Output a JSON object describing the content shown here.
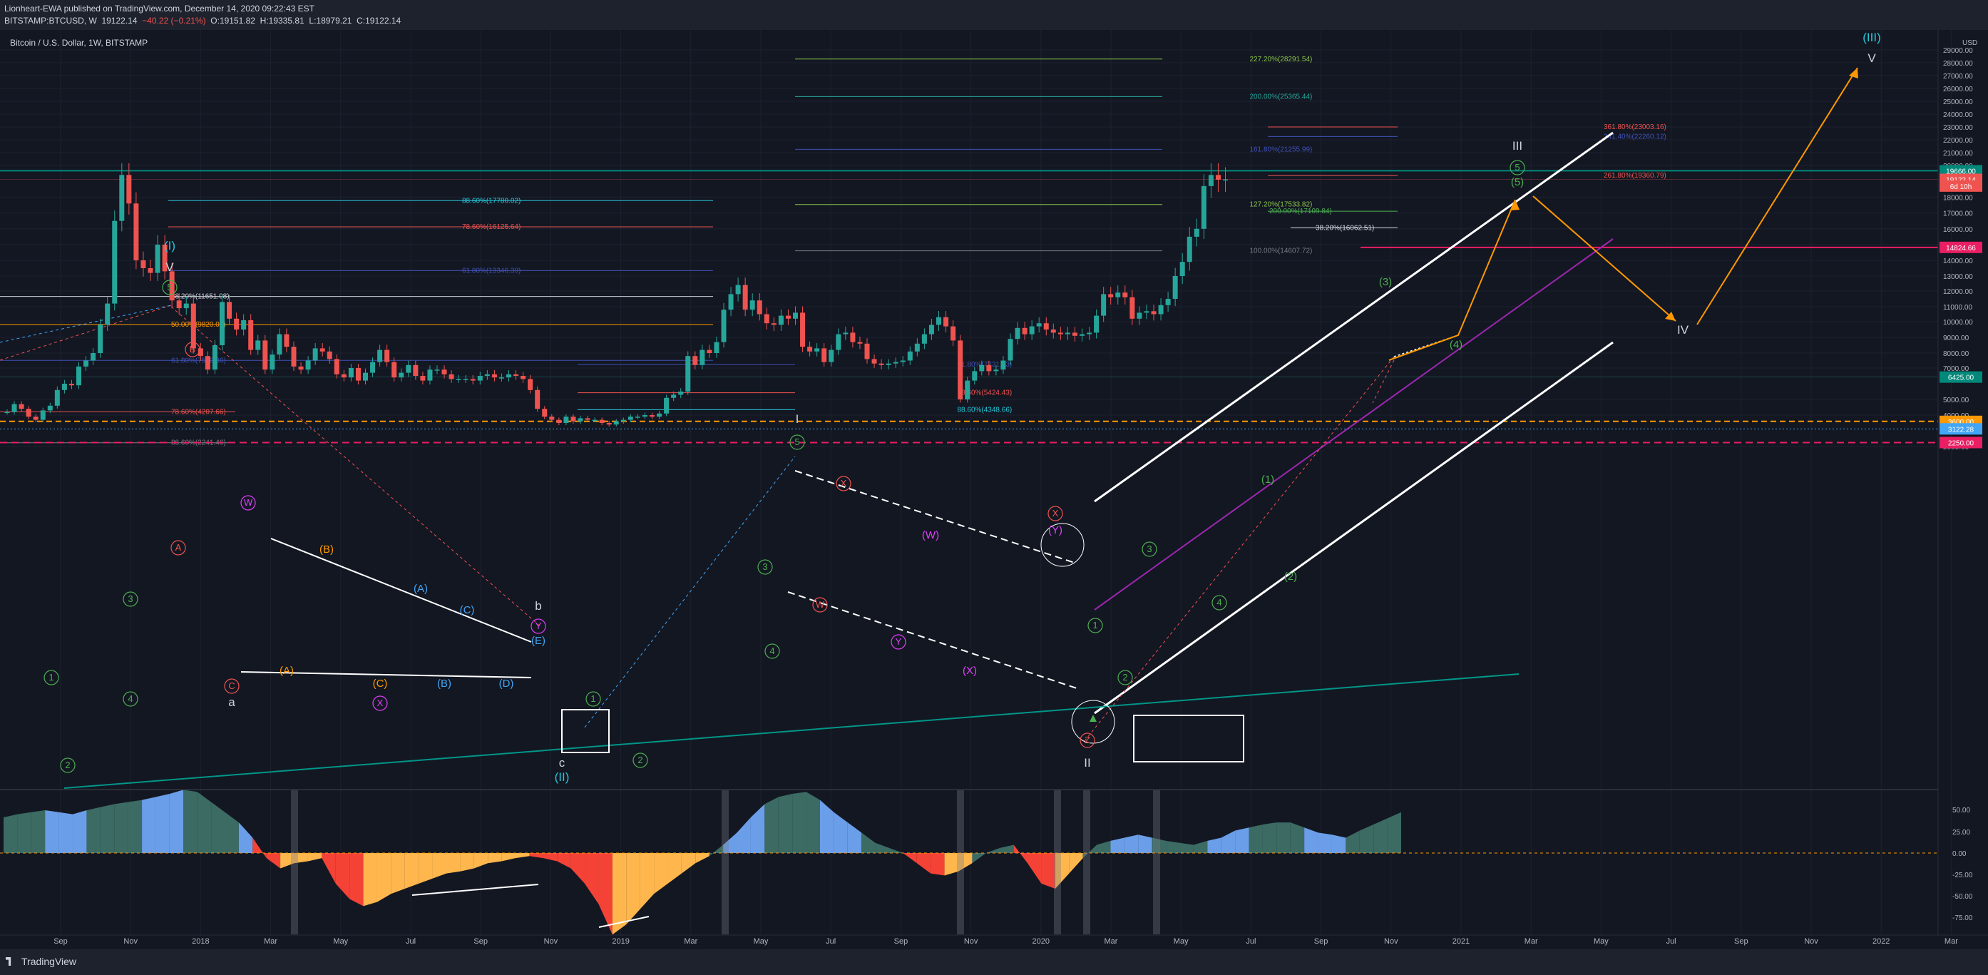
{
  "header": {
    "published_line": "Lionheart-EWA published on TradingView.com, December 14, 2020 09:22:43 EST",
    "symbol": "BITSTAMP:BTCUSD, W",
    "last": "19122.14",
    "change": "−40.22 (−0.21%)",
    "open": "O:19151.82",
    "high": "H:19335.81",
    "low": "L:18979.21",
    "close": "C:19122.14"
  },
  "chart_title": "Bitcoin / U.S. Dollar, 1W, BITSTAMP",
  "currency_label": "USD",
  "footer_brand": "TradingView",
  "colors": {
    "background": "#131722",
    "bull": "#26a69a",
    "bear": "#ef5350",
    "green_wave": "#4caf50",
    "magenta_wave": "#e040fb",
    "blue_wave": "#42a5f5",
    "orange_wave": "#ff9800",
    "teal_line": "#009688",
    "osc_teal": "#3b6b63",
    "osc_blue": "#6b9ee8",
    "osc_red": "#f44336",
    "osc_orange": "#ffb74d"
  },
  "chart_data": {
    "type": "line",
    "title": "Bitcoin / U.S. Dollar, 1W, BITSTAMP",
    "ylabel": "USD",
    "ylim": [
      1000,
      30000
    ],
    "x_ticks": [
      "Sep",
      "Nov",
      "2018",
      "Mar",
      "May",
      "Jul",
      "Sep",
      "Nov",
      "2019",
      "Mar",
      "May",
      "Jul",
      "Sep",
      "Nov",
      "2020",
      "Mar",
      "May",
      "Jul",
      "Sep",
      "Nov",
      "2021",
      "Mar",
      "May",
      "Jul",
      "Sep",
      "Nov",
      "2022",
      "Mar"
    ],
    "y_ticks": [
      "29000.00",
      "28000.00",
      "27000.00",
      "26000.00",
      "25000.00",
      "24000.00",
      "23000.00",
      "22000.00",
      "21000.00",
      "20000.00",
      "18000.00",
      "17000.00",
      "16000.00",
      "15000.00",
      "14000.00",
      "13000.00",
      "12000.00",
      "11000.00",
      "10000.00",
      "9000.00",
      "8000.00",
      "7000.00",
      "5000.00",
      "4000.00",
      "2000.00"
    ],
    "price_badges": [
      {
        "value": 19666.0,
        "label": "19666.00",
        "color": "#00897b"
      },
      {
        "value": 19122.14,
        "label": "19122.14",
        "color": "#ef5350"
      },
      {
        "value": 18700,
        "label": "6d 10h",
        "color": "#ef5350"
      },
      {
        "value": 14824.66,
        "label": "14824.66",
        "color": "#e91e63"
      },
      {
        "value": 6425.0,
        "label": "6425.00",
        "color": "#00897b"
      },
      {
        "value": 3600.0,
        "label": "3600.00",
        "color": "#ff9800"
      },
      {
        "value": 3122.28,
        "label": "3122.28",
        "color": "#42a5f5"
      },
      {
        "value": 2250.0,
        "label": "2250.00",
        "color": "#e91e63"
      }
    ],
    "weekly_close": [
      4200,
      4700,
      4400,
      3900,
      3700,
      4300,
      4600,
      5600,
      6000,
      5900,
      7100,
      7500,
      8000,
      9800,
      11200,
      16500,
      19400,
      17600,
      14000,
      13500,
      13200,
      15000,
      13300,
      11400,
      10900,
      11200,
      8300,
      7800,
      6900,
      8500,
      11300,
      10200,
      9500,
      10100,
      8200,
      8800,
      6900,
      7900,
      9200,
      8400,
      7100,
      6900,
      7500,
      8300,
      8100,
      7600,
      6600,
      6400,
      7000,
      6200,
      6700,
      7400,
      8200,
      7400,
      6400,
      6700,
      7200,
      6500,
      6200,
      6900,
      6900,
      6600,
      6300,
      6300,
      6300,
      6200,
      6500,
      6600,
      6400,
      6400,
      6600,
      6500,
      6300,
      5600,
      4400,
      3900,
      3700,
      3500,
      3900,
      3600,
      3800,
      3700,
      3700,
      3500,
      3400,
      3600,
      3700,
      3900,
      3900,
      4000,
      3900,
      4100,
      5100,
      5300,
      5500,
      7800,
      7200,
      8200,
      8000,
      8700,
      10800,
      11800,
      12400,
      10800,
      11400,
      10500,
      9900,
      9800,
      10400,
      10200,
      10600,
      8400,
      8100,
      8300,
      7400,
      8200,
      9200,
      9300,
      8700,
      8600,
      7600,
      7300,
      7200,
      7300,
      7400,
      7500,
      8100,
      8600,
      9200,
      9800,
      10300,
      9700,
      8800,
      5000,
      6200,
      6800,
      7200,
      6800,
      6900,
      7500,
      8900,
      9600,
      9200,
      9700,
      9900,
      9500,
      9300,
      9200,
      9300,
      9100,
      9200,
      9300,
      10400,
      11800,
      11600,
      11900,
      11600,
      10200,
      10600,
      10700,
      10500,
      11100,
      11500,
      13000,
      13900,
      15500,
      16000,
      18700,
      19400,
      19100,
      19122
    ],
    "series": [
      {
        "name": "",
        "values": "weekly_close"
      }
    ],
    "fib_levels": [
      {
        "label": "227.20%(28291.54)",
        "value": 28291.54
      },
      {
        "label": "200.00%(25365.44)",
        "value": 25365.44
      },
      {
        "label": "361.80%(23003.16)",
        "value": 23003.16
      },
      {
        "label": "341.40%(22260.12)",
        "value": 22260.12
      },
      {
        "label": "161.80%(21255.99)",
        "value": 21255.99
      },
      {
        "label": "261.80%(19360.79)",
        "value": 19360.79
      },
      {
        "label": "88.60%(17780.02)",
        "value": 17780.02
      },
      {
        "label": "127.20%(17533.82)",
        "value": 17533.82
      },
      {
        "label": "200.00%(17109.84)",
        "value": 17109.84
      },
      {
        "label": "78.60%(16125.64)",
        "value": 16125.64
      },
      {
        "label": "38.20%(16062.51)",
        "value": 16062.51
      },
      {
        "label": "100.00%(14607.72)",
        "value": 14607.72
      },
      {
        "label": "61.80%(13346.30)",
        "value": 13346.3
      },
      {
        "label": "38.20%(11651.08)",
        "value": 11651.08
      },
      {
        "label": "50.00%(9820.00)",
        "value": 9820.0
      },
      {
        "label": "61.80%(7510.86)",
        "value": 7510.86
      },
      {
        "label": "61.80%(7231.73)",
        "value": 7231.73
      },
      {
        "label": "78.60%(5424.43)",
        "value": 5424.43
      },
      {
        "label": "88.60%(4348.66)",
        "value": 4348.66
      },
      {
        "label": "78.60%(4207.66)",
        "value": 4207.66
      },
      {
        "label": "88.60%(2241.46)",
        "value": 2241.46
      }
    ],
    "wave_labels": [
      "(I)",
      "V",
      "(II)",
      "I",
      "II",
      "III",
      "IV",
      "V",
      "(III)",
      "(3)",
      "(4)",
      "(5)",
      "(1)",
      "(2)",
      "(Y)",
      "(X)",
      "(W)",
      "(A)",
      "(B)",
      "(C)",
      "(D)",
      "(E)",
      "a",
      "b",
      "c"
    ],
    "osc_ticks": [
      "50.00",
      "25.00",
      "0.00",
      "-25.00",
      "-50.00",
      "-75.00"
    ],
    "grid": true
  }
}
